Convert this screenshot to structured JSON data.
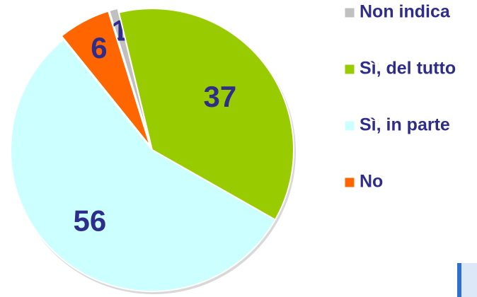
{
  "chart_data": {
    "type": "pie",
    "categories": [
      "Non indica",
      "Sì, del tutto",
      "Sì, in parte",
      "No"
    ],
    "values": [
      1,
      37,
      56,
      6
    ],
    "colors": [
      "#c0c0c0",
      "#99cc00",
      "#ccffff",
      "#ff6600"
    ]
  }
}
